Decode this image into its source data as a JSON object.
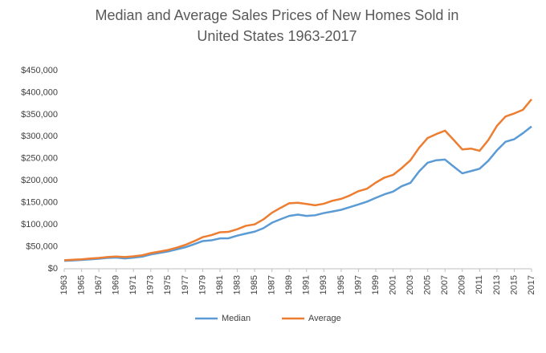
{
  "chart_data": {
    "type": "line",
    "title": "Median and Average Sales Prices of New Homes Sold in United States 1963-2017",
    "x": [
      1963,
      1964,
      1965,
      1966,
      1967,
      1968,
      1969,
      1970,
      1971,
      1972,
      1973,
      1974,
      1975,
      1976,
      1977,
      1978,
      1979,
      1980,
      1981,
      1982,
      1983,
      1984,
      1985,
      1986,
      1987,
      1988,
      1989,
      1990,
      1991,
      1992,
      1993,
      1994,
      1995,
      1996,
      1997,
      1998,
      1999,
      2000,
      2001,
      2002,
      2003,
      2004,
      2005,
      2006,
      2007,
      2008,
      2009,
      2010,
      2011,
      2012,
      2013,
      2014,
      2015,
      2016,
      2017
    ],
    "series": [
      {
        "name": "Median",
        "color": "#5b9bd5",
        "values": [
          18000,
          18900,
          20000,
          21400,
          22700,
          24700,
          25600,
          23400,
          25200,
          27600,
          32500,
          35900,
          39300,
          44200,
          48800,
          55700,
          62900,
          64600,
          68900,
          69300,
          75300,
          79900,
          84300,
          92000,
          104500,
          112500,
          120000,
          122900,
          120000,
          121500,
          126500,
          130000,
          133900,
          140000,
          146000,
          152500,
          161000,
          169000,
          175200,
          187600,
          195000,
          221000,
          240900,
          246500,
          247900,
          232100,
          216700,
          221800,
          227200,
          245200,
          268900,
          288500,
          294200,
          307800,
          323100
        ]
      },
      {
        "name": "Average",
        "color": "#ed7d31",
        "values": [
          19300,
          20500,
          21500,
          23300,
          24600,
          26600,
          27900,
          26600,
          28300,
          30500,
          35500,
          38900,
          42600,
          48000,
          54200,
          62500,
          71800,
          76400,
          83000,
          83900,
          89800,
          97600,
          100800,
          111900,
          127200,
          138300,
          148800,
          149800,
          147200,
          144100,
          147700,
          154500,
          158700,
          166400,
          176200,
          181900,
          195600,
          207000,
          213200,
          228700,
          246300,
          274500,
          297000,
          305900,
          313600,
          292600,
          270900,
          272900,
          267900,
          292200,
          324500,
          345800,
          352700,
          360900,
          384900
        ]
      }
    ],
    "xlim": [
      1963,
      2017
    ],
    "xticks": [
      1963,
      1965,
      1967,
      1969,
      1971,
      1973,
      1975,
      1977,
      1979,
      1981,
      1983,
      1985,
      1987,
      1989,
      1991,
      1993,
      1995,
      1997,
      1999,
      2001,
      2003,
      2005,
      2007,
      2009,
      2011,
      2013,
      2015,
      2017
    ],
    "ylim": [
      0,
      450000
    ],
    "yticks": [
      {
        "value": 0,
        "label": "$0"
      },
      {
        "value": 50000,
        "label": "$50,000"
      },
      {
        "value": 100000,
        "label": "$100,000"
      },
      {
        "value": 150000,
        "label": "$150,000"
      },
      {
        "value": 200000,
        "label": "$200,000"
      },
      {
        "value": 250000,
        "label": "$250,000"
      },
      {
        "value": 300000,
        "label": "$300,000"
      },
      {
        "value": 350000,
        "label": "$350,000"
      },
      {
        "value": 400000,
        "label": "$400,000"
      },
      {
        "value": 450000,
        "label": "$450,000"
      }
    ],
    "grid": false,
    "legend": "bottom"
  }
}
